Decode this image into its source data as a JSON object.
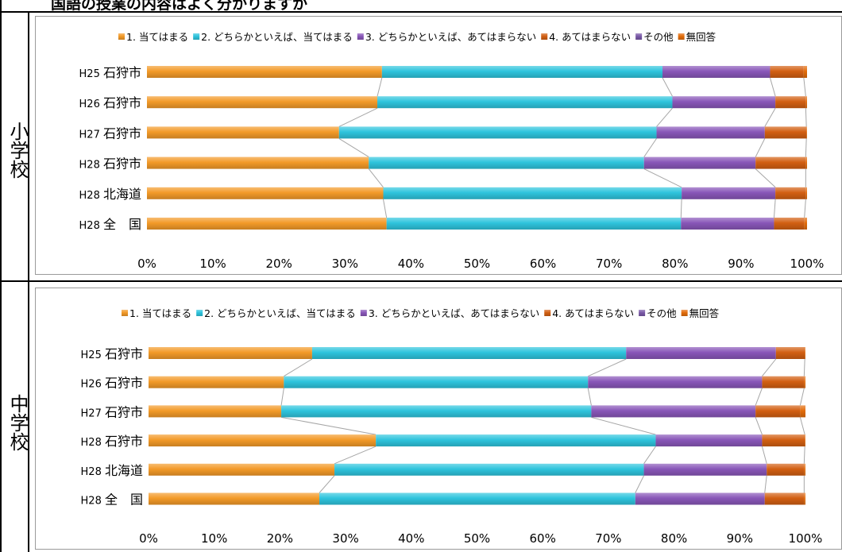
{
  "page": {
    "title_fragment": "国語の授業の内容はよく分かりますか"
  },
  "sections": [
    {
      "label": "小学校"
    },
    {
      "label": "中学校"
    }
  ],
  "colors": {
    "cat1": "#f39a28",
    "cat2": "#2ec4dd",
    "cat3": "#8856b8",
    "cat4": "#d25f12",
    "cat5": "#7a59a8",
    "cat6": "#e36c0a",
    "connector": "#a6a6a6"
  },
  "chart_data": [
    {
      "type": "bar",
      "orientation": "horizontal-stacked-100",
      "section": "小学校",
      "legend_position": "top",
      "series": [
        {
          "name": "1. 当てはまる",
          "color_key": "cat1"
        },
        {
          "name": "2. どちらかといえば、当てはまる",
          "color_key": "cat2"
        },
        {
          "name": "3. どちらかといえば、あてはまらない",
          "color_key": "cat3"
        },
        {
          "name": "4. あてはまらない",
          "color_key": "cat4"
        },
        {
          "name": "その他",
          "color_key": "cat5"
        },
        {
          "name": "無回答",
          "color_key": "cat6"
        }
      ],
      "categories": [
        {
          "year": "H25",
          "place": "石狩市"
        },
        {
          "year": "H26",
          "place": "石狩市"
        },
        {
          "year": "H27",
          "place": "石狩市"
        },
        {
          "year": "H28",
          "place": "石狩市"
        },
        {
          "year": "H28",
          "place": "北海道"
        },
        {
          "year": "H28",
          "place": "全　国"
        }
      ],
      "values": [
        [
          35.6,
          42.5,
          16.3,
          5.1,
          0.0,
          0.5
        ],
        [
          34.9,
          44.7,
          15.6,
          4.6,
          0.0,
          0.2
        ],
        [
          29.1,
          48.1,
          16.4,
          6.3,
          0.0,
          0.1
        ],
        [
          33.6,
          41.7,
          16.9,
          7.6,
          0.0,
          0.2
        ],
        [
          35.8,
          45.2,
          14.2,
          4.6,
          0.0,
          0.2
        ],
        [
          36.3,
          44.6,
          14.1,
          4.6,
          0.0,
          0.4
        ]
      ],
      "xlim": [
        0,
        100
      ],
      "xticks": [
        "0%",
        "10%",
        "20%",
        "30%",
        "40%",
        "50%",
        "60%",
        "70%",
        "80%",
        "90%",
        "100%"
      ]
    },
    {
      "type": "bar",
      "orientation": "horizontal-stacked-100",
      "section": "中学校",
      "legend_position": "top",
      "series": [
        {
          "name": "1. 当てはまる",
          "color_key": "cat1"
        },
        {
          "name": "2. どちらかといえば、当てはまる",
          "color_key": "cat2"
        },
        {
          "name": "3. どちらかといえば、あてはまらない",
          "color_key": "cat3"
        },
        {
          "name": "4. あてはまらない",
          "color_key": "cat4"
        },
        {
          "name": "その他",
          "color_key": "cat5"
        },
        {
          "name": "無回答",
          "color_key": "cat6"
        }
      ],
      "categories": [
        {
          "year": "H25",
          "place": "石狩市"
        },
        {
          "year": "H26",
          "place": "石狩市"
        },
        {
          "year": "H27",
          "place": "石狩市"
        },
        {
          "year": "H28",
          "place": "石狩市"
        },
        {
          "year": "H28",
          "place": "北海道"
        },
        {
          "year": "H28",
          "place": "全　国"
        }
      ],
      "values": [
        [
          24.9,
          47.8,
          22.8,
          4.4,
          0.0,
          0.1
        ],
        [
          20.6,
          46.3,
          26.5,
          6.4,
          0.0,
          0.2
        ],
        [
          20.2,
          47.2,
          25.0,
          6.8,
          0.0,
          0.8
        ],
        [
          34.6,
          42.6,
          16.2,
          6.5,
          0.0,
          0.1
        ],
        [
          28.3,
          47.1,
          18.7,
          5.7,
          0.0,
          0.2
        ],
        [
          26.0,
          48.1,
          19.7,
          6.0,
          0.0,
          0.2
        ]
      ],
      "xlim": [
        0,
        100
      ],
      "xticks": [
        "0%",
        "10%",
        "20%",
        "30%",
        "40%",
        "50%",
        "60%",
        "70%",
        "80%",
        "90%",
        "100%"
      ]
    }
  ]
}
